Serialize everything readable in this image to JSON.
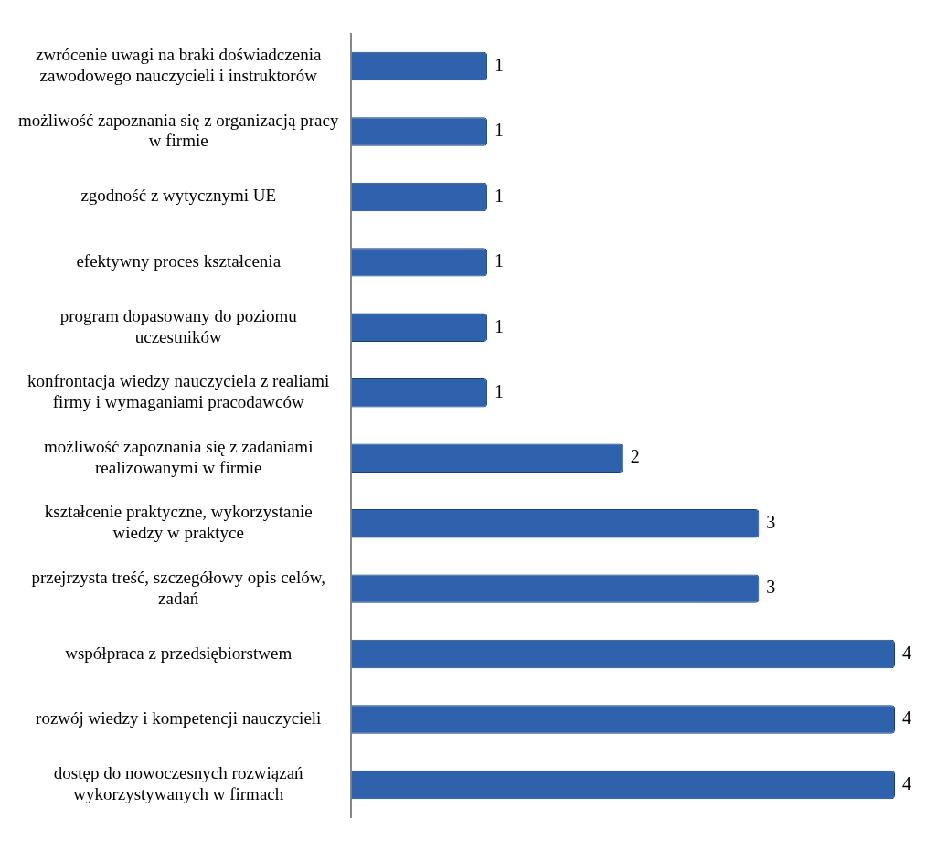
{
  "chart_data": {
    "type": "bar",
    "orientation": "horizontal",
    "categories": [
      "zwrócenie uwagi na braki doświadczenia\nzawodowego nauczycieli i instruktorów",
      "możliwość zapoznania się z organizacją pracy\nw firmie",
      "zgodność z wytycznymi UE",
      "efektywny proces kształcenia",
      "program dopasowany do poziomu\nuczestników",
      "konfrontacja wiedzy nauczyciela z realiami\nfirmy i wymaganiami pracodawców",
      "możliwość zapoznania się z zadaniami\nrealizowanymi w firmie",
      "kształcenie praktyczne, wykorzystanie\nwiedzy w praktyce",
      "przejrzysta treść, szczegółowy opis celów,\nzadań",
      "współpraca z przedsiębiorstwem",
      "rozwój wiedzy i kompetencji nauczycieli",
      "dostęp do nowoczesnych rozwiązań\nwykorzystywanych w firmach"
    ],
    "values": [
      1,
      1,
      1,
      1,
      1,
      1,
      2,
      3,
      3,
      4,
      4,
      4
    ],
    "color": "#2e62ad",
    "xlim": [
      0,
      4
    ],
    "data_labels": true,
    "tick_labels": "y",
    "grid": false,
    "legend": false
  }
}
